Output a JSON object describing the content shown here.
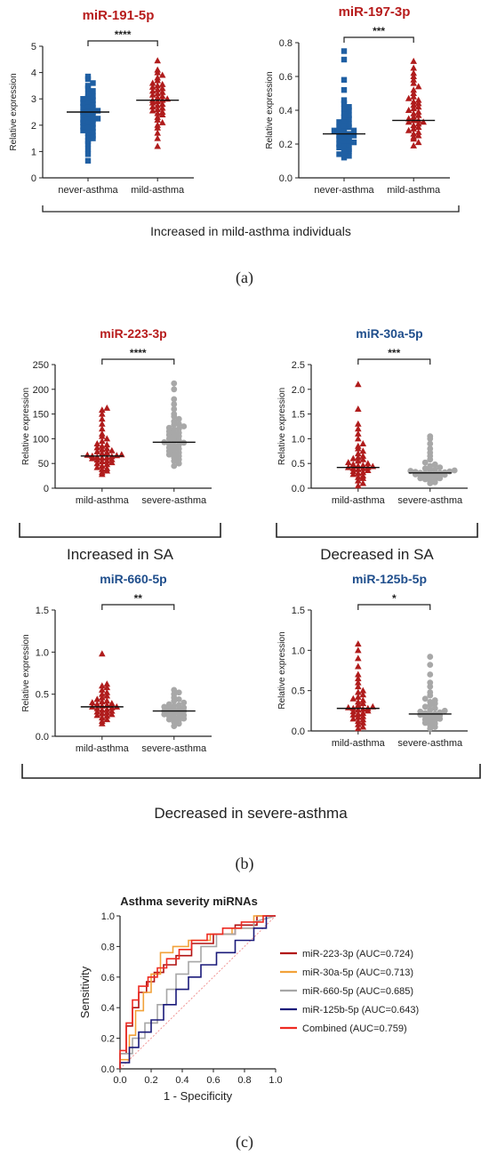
{
  "figure": {
    "panel_labels": [
      "(a)",
      "(b)",
      "(c)"
    ],
    "group_a_label": "Increased in mild-asthma individuals",
    "group_b1_label": "Increased in SA",
    "group_b2_label": "Decreased in SA",
    "group_b3_label": "Decreased in severe-asthma"
  },
  "colors": {
    "never_asthma": "#1f5fa3",
    "mild_asthma": "#b01c1c",
    "severe_asthma": "#a8a8a8",
    "title_red": "#b71c1c",
    "title_blue": "#1f4e8c"
  },
  "chart_data": [
    {
      "type": "scatter",
      "title": "miR-191-5p",
      "title_color": "#b71c1c",
      "ylabel": "Relative expression",
      "ylim": [
        0,
        5
      ],
      "yticks": [
        0,
        1,
        2,
        3,
        4,
        5
      ],
      "categories": [
        "never-asthma",
        "mild-asthma"
      ],
      "significance": "****",
      "series": [
        {
          "category": "never-asthma",
          "marker": "square",
          "color": "#1f5fa3",
          "median": 2.5,
          "values": [
            0.65,
            0.9,
            1.1,
            1.3,
            1.4,
            1.5,
            1.55,
            1.6,
            1.7,
            1.75,
            1.8,
            1.85,
            1.9,
            1.95,
            2.0,
            2.05,
            2.1,
            2.15,
            2.2,
            2.2,
            2.25,
            2.3,
            2.35,
            2.4,
            2.45,
            2.5,
            2.5,
            2.55,
            2.6,
            2.65,
            2.7,
            2.75,
            2.8,
            2.85,
            2.9,
            2.95,
            3.0,
            3.05,
            3.1,
            3.2,
            3.3,
            3.4,
            3.5,
            3.6,
            3.75,
            3.85
          ]
        },
        {
          "category": "mild-asthma",
          "marker": "triangle",
          "color": "#b01c1c",
          "median": 2.95,
          "values": [
            1.2,
            1.5,
            1.7,
            1.9,
            2.0,
            2.1,
            2.2,
            2.3,
            2.4,
            2.45,
            2.5,
            2.55,
            2.6,
            2.65,
            2.7,
            2.75,
            2.8,
            2.85,
            2.9,
            2.95,
            2.95,
            3.0,
            3.05,
            3.1,
            3.15,
            3.2,
            3.25,
            3.3,
            3.35,
            3.4,
            3.45,
            3.5,
            3.55,
            3.6,
            3.7,
            3.8,
            3.9,
            4.0,
            4.1,
            4.45
          ]
        }
      ]
    },
    {
      "type": "scatter",
      "title": "miR-197-3p",
      "title_color": "#b71c1c",
      "ylabel": "Relative expression",
      "ylim": [
        0,
        0.8
      ],
      "yticks": [
        0.0,
        0.2,
        0.4,
        0.6,
        0.8
      ],
      "categories": [
        "never-asthma",
        "mild-asthma"
      ],
      "significance": "***",
      "series": [
        {
          "category": "never-asthma",
          "marker": "square",
          "color": "#1f5fa3",
          "median": 0.26,
          "values": [
            0.12,
            0.13,
            0.14,
            0.15,
            0.16,
            0.17,
            0.17,
            0.18,
            0.19,
            0.2,
            0.2,
            0.21,
            0.22,
            0.22,
            0.23,
            0.24,
            0.24,
            0.25,
            0.25,
            0.26,
            0.26,
            0.27,
            0.28,
            0.28,
            0.29,
            0.3,
            0.3,
            0.31,
            0.32,
            0.33,
            0.34,
            0.35,
            0.36,
            0.37,
            0.38,
            0.4,
            0.41,
            0.42,
            0.44,
            0.46,
            0.52,
            0.58,
            0.7,
            0.75
          ]
        },
        {
          "category": "mild-asthma",
          "marker": "triangle",
          "color": "#b01c1c",
          "median": 0.34,
          "values": [
            0.19,
            0.21,
            0.23,
            0.24,
            0.25,
            0.26,
            0.27,
            0.28,
            0.29,
            0.3,
            0.31,
            0.32,
            0.33,
            0.33,
            0.34,
            0.34,
            0.35,
            0.36,
            0.37,
            0.38,
            0.39,
            0.4,
            0.41,
            0.42,
            0.43,
            0.44,
            0.45,
            0.46,
            0.47,
            0.48,
            0.5,
            0.52,
            0.54,
            0.56,
            0.58,
            0.6,
            0.62,
            0.65,
            0.69
          ]
        }
      ]
    },
    {
      "type": "scatter",
      "title": "miR-223-3p",
      "title_color": "#b71c1c",
      "ylabel": "Relative expression",
      "ylim": [
        0,
        250
      ],
      "yticks": [
        0,
        50,
        100,
        150,
        200,
        250
      ],
      "categories": [
        "mild-asthma",
        "severe-asthma"
      ],
      "significance": "****",
      "series": [
        {
          "category": "mild-asthma",
          "marker": "triangle",
          "color": "#b01c1c",
          "median": 65,
          "values": [
            28,
            32,
            35,
            38,
            40,
            42,
            45,
            48,
            50,
            52,
            54,
            55,
            57,
            58,
            60,
            61,
            62,
            63,
            64,
            65,
            66,
            67,
            68,
            70,
            72,
            74,
            76,
            78,
            80,
            82,
            85,
            88,
            90,
            95,
            100,
            105,
            110,
            120,
            130,
            140,
            150,
            158,
            162
          ]
        },
        {
          "category": "severe-asthma",
          "marker": "circle",
          "color": "#a8a8a8",
          "median": 93,
          "values": [
            45,
            50,
            55,
            58,
            62,
            65,
            68,
            70,
            72,
            75,
            78,
            80,
            82,
            85,
            88,
            90,
            92,
            93,
            95,
            97,
            100,
            102,
            105,
            108,
            110,
            112,
            115,
            118,
            120,
            122,
            125,
            128,
            130,
            135,
            140,
            145,
            150,
            160,
            170,
            180,
            200,
            212
          ]
        }
      ]
    },
    {
      "type": "scatter",
      "title": "miR-30a-5p",
      "title_color": "#1f4e8c",
      "ylabel": "Relative expression",
      "ylim": [
        0,
        2.5
      ],
      "yticks": [
        0.0,
        0.5,
        1.0,
        1.5,
        2.0,
        2.5
      ],
      "categories": [
        "mild-asthma",
        "severe-asthma"
      ],
      "significance": "***",
      "series": [
        {
          "category": "mild-asthma",
          "marker": "triangle",
          "color": "#b01c1c",
          "median": 0.42,
          "values": [
            0.05,
            0.1,
            0.15,
            0.2,
            0.22,
            0.25,
            0.28,
            0.3,
            0.32,
            0.34,
            0.36,
            0.38,
            0.4,
            0.4,
            0.42,
            0.42,
            0.44,
            0.45,
            0.46,
            0.48,
            0.5,
            0.52,
            0.55,
            0.58,
            0.6,
            0.62,
            0.65,
            0.7,
            0.75,
            0.8,
            0.85,
            0.9,
            1.0,
            1.1,
            1.2,
            1.3,
            1.6,
            2.1
          ]
        },
        {
          "category": "severe-asthma",
          "marker": "circle",
          "color": "#a8a8a8",
          "median": 0.31,
          "values": [
            0.1,
            0.12,
            0.14,
            0.16,
            0.18,
            0.2,
            0.2,
            0.22,
            0.23,
            0.24,
            0.25,
            0.26,
            0.27,
            0.28,
            0.29,
            0.3,
            0.3,
            0.31,
            0.31,
            0.32,
            0.33,
            0.34,
            0.35,
            0.36,
            0.37,
            0.38,
            0.4,
            0.42,
            0.45,
            0.48,
            0.52,
            0.58,
            0.65,
            0.72,
            0.8,
            0.9,
            1.0,
            1.05
          ]
        }
      ]
    },
    {
      "type": "scatter",
      "title": "miR-660-5p",
      "title_color": "#1f4e8c",
      "ylabel": "Relative expression",
      "ylim": [
        0,
        1.5
      ],
      "yticks": [
        0.0,
        0.5,
        1.0,
        1.5
      ],
      "categories": [
        "mild-asthma",
        "severe-asthma"
      ],
      "significance": "**",
      "series": [
        {
          "category": "mild-asthma",
          "marker": "triangle",
          "color": "#b01c1c",
          "median": 0.35,
          "values": [
            0.15,
            0.18,
            0.2,
            0.22,
            0.24,
            0.25,
            0.26,
            0.27,
            0.28,
            0.29,
            0.3,
            0.31,
            0.32,
            0.33,
            0.34,
            0.35,
            0.35,
            0.36,
            0.37,
            0.38,
            0.39,
            0.4,
            0.41,
            0.42,
            0.44,
            0.46,
            0.48,
            0.5,
            0.52,
            0.55,
            0.58,
            0.6,
            0.62,
            0.98
          ]
        },
        {
          "category": "severe-asthma",
          "marker": "circle",
          "color": "#a8a8a8",
          "median": 0.3,
          "values": [
            0.12,
            0.15,
            0.17,
            0.19,
            0.2,
            0.21,
            0.22,
            0.23,
            0.24,
            0.25,
            0.26,
            0.27,
            0.28,
            0.29,
            0.3,
            0.3,
            0.31,
            0.32,
            0.33,
            0.34,
            0.35,
            0.36,
            0.37,
            0.38,
            0.4,
            0.42,
            0.44,
            0.46,
            0.5,
            0.52,
            0.55
          ]
        }
      ]
    },
    {
      "type": "scatter",
      "title": "miR-125b-5p",
      "title_color": "#1f4e8c",
      "ylabel": "Relative expression",
      "ylim": [
        0,
        1.5
      ],
      "yticks": [
        0.0,
        0.5,
        1.0,
        1.5
      ],
      "categories": [
        "mild-asthma",
        "severe-asthma"
      ],
      "significance": "*",
      "series": [
        {
          "category": "mild-asthma",
          "marker": "triangle",
          "color": "#b01c1c",
          "median": 0.28,
          "values": [
            0.03,
            0.05,
            0.08,
            0.1,
            0.12,
            0.14,
            0.15,
            0.17,
            0.18,
            0.2,
            0.21,
            0.22,
            0.24,
            0.25,
            0.26,
            0.27,
            0.28,
            0.28,
            0.29,
            0.3,
            0.32,
            0.34,
            0.36,
            0.38,
            0.4,
            0.42,
            0.45,
            0.48,
            0.5,
            0.55,
            0.6,
            0.65,
            0.7,
            0.8,
            0.9,
            1.0,
            1.08
          ]
        },
        {
          "category": "severe-asthma",
          "marker": "circle",
          "color": "#a8a8a8",
          "median": 0.21,
          "values": [
            0.03,
            0.05,
            0.07,
            0.09,
            0.1,
            0.12,
            0.13,
            0.14,
            0.15,
            0.16,
            0.17,
            0.18,
            0.19,
            0.2,
            0.21,
            0.21,
            0.22,
            0.23,
            0.24,
            0.25,
            0.26,
            0.28,
            0.3,
            0.32,
            0.34,
            0.36,
            0.38,
            0.4,
            0.44,
            0.48,
            0.55,
            0.6,
            0.7,
            0.82,
            0.92
          ]
        }
      ]
    },
    {
      "type": "line",
      "title": "Asthma severity miRNAs",
      "xlabel": "1 - Specificity",
      "ylabel": "Sensitivity",
      "xlim": [
        0,
        1
      ],
      "ylim": [
        0,
        1
      ],
      "xticks": [
        0.0,
        0.2,
        0.4,
        0.6,
        0.8,
        1.0
      ],
      "yticks": [
        0.0,
        0.2,
        0.4,
        0.6,
        0.8,
        1.0
      ],
      "legend_position": "right",
      "reference_line": true,
      "series": [
        {
          "name": "miR-223-3p (AUC=0.724)",
          "color": "#b11212",
          "x": [
            0,
            0,
            0.04,
            0.04,
            0.08,
            0.08,
            0.12,
            0.12,
            0.17,
            0.17,
            0.22,
            0.22,
            0.28,
            0.28,
            0.36,
            0.36,
            0.46,
            0.46,
            0.6,
            0.6,
            0.74,
            0.74,
            0.88,
            0.88,
            1
          ],
          "y": [
            0,
            0.1,
            0.1,
            0.28,
            0.28,
            0.4,
            0.4,
            0.5,
            0.5,
            0.57,
            0.57,
            0.63,
            0.63,
            0.68,
            0.68,
            0.74,
            0.74,
            0.82,
            0.82,
            0.88,
            0.88,
            0.94,
            0.94,
            1,
            1
          ]
        },
        {
          "name": "miR-30a-5p (AUC=0.713)",
          "color": "#f2a23a",
          "x": [
            0,
            0,
            0.06,
            0.06,
            0.1,
            0.1,
            0.15,
            0.15,
            0.2,
            0.2,
            0.26,
            0.26,
            0.34,
            0.34,
            0.44,
            0.44,
            0.58,
            0.58,
            0.72,
            0.72,
            0.86,
            0.86,
            1
          ],
          "y": [
            0,
            0.06,
            0.06,
            0.22,
            0.22,
            0.38,
            0.38,
            0.5,
            0.5,
            0.62,
            0.62,
            0.76,
            0.76,
            0.8,
            0.8,
            0.84,
            0.84,
            0.88,
            0.88,
            0.92,
            0.92,
            1,
            1
          ]
        },
        {
          "name": "miR-660-5p (AUC=0.685)",
          "color": "#a6a6a6",
          "x": [
            0,
            0,
            0.08,
            0.08,
            0.16,
            0.16,
            0.24,
            0.24,
            0.3,
            0.3,
            0.36,
            0.36,
            0.44,
            0.44,
            0.52,
            0.52,
            0.62,
            0.62,
            0.74,
            0.74,
            0.86,
            0.86,
            1
          ],
          "y": [
            0,
            0.1,
            0.1,
            0.2,
            0.2,
            0.3,
            0.3,
            0.42,
            0.42,
            0.52,
            0.52,
            0.62,
            0.62,
            0.7,
            0.7,
            0.8,
            0.8,
            0.88,
            0.88,
            0.92,
            0.92,
            0.96,
            1
          ]
        },
        {
          "name": "miR-125b-5p (AUC=0.643)",
          "color": "#1a1a7a",
          "x": [
            0,
            0,
            0.06,
            0.06,
            0.12,
            0.12,
            0.2,
            0.2,
            0.28,
            0.28,
            0.36,
            0.36,
            0.44,
            0.44,
            0.52,
            0.52,
            0.62,
            0.62,
            0.74,
            0.74,
            0.86,
            0.86,
            0.94,
            0.94,
            1
          ],
          "y": [
            0,
            0.04,
            0.04,
            0.14,
            0.14,
            0.24,
            0.24,
            0.32,
            0.32,
            0.42,
            0.42,
            0.52,
            0.52,
            0.6,
            0.6,
            0.68,
            0.68,
            0.76,
            0.76,
            0.84,
            0.84,
            0.92,
            0.92,
            1,
            1
          ]
        },
        {
          "name": "Combined (AUC=0.759)",
          "color": "#ee2b22",
          "x": [
            0,
            0,
            0.04,
            0.04,
            0.08,
            0.08,
            0.12,
            0.12,
            0.18,
            0.18,
            0.24,
            0.24,
            0.3,
            0.3,
            0.38,
            0.38,
            0.46,
            0.46,
            0.56,
            0.56,
            0.66,
            0.66,
            0.78,
            0.78,
            0.92,
            0.92,
            1
          ],
          "y": [
            0,
            0.12,
            0.12,
            0.3,
            0.3,
            0.45,
            0.45,
            0.54,
            0.54,
            0.6,
            0.6,
            0.66,
            0.66,
            0.72,
            0.72,
            0.78,
            0.78,
            0.84,
            0.84,
            0.88,
            0.88,
            0.92,
            0.92,
            0.96,
            0.96,
            1,
            1
          ]
        }
      ]
    }
  ]
}
